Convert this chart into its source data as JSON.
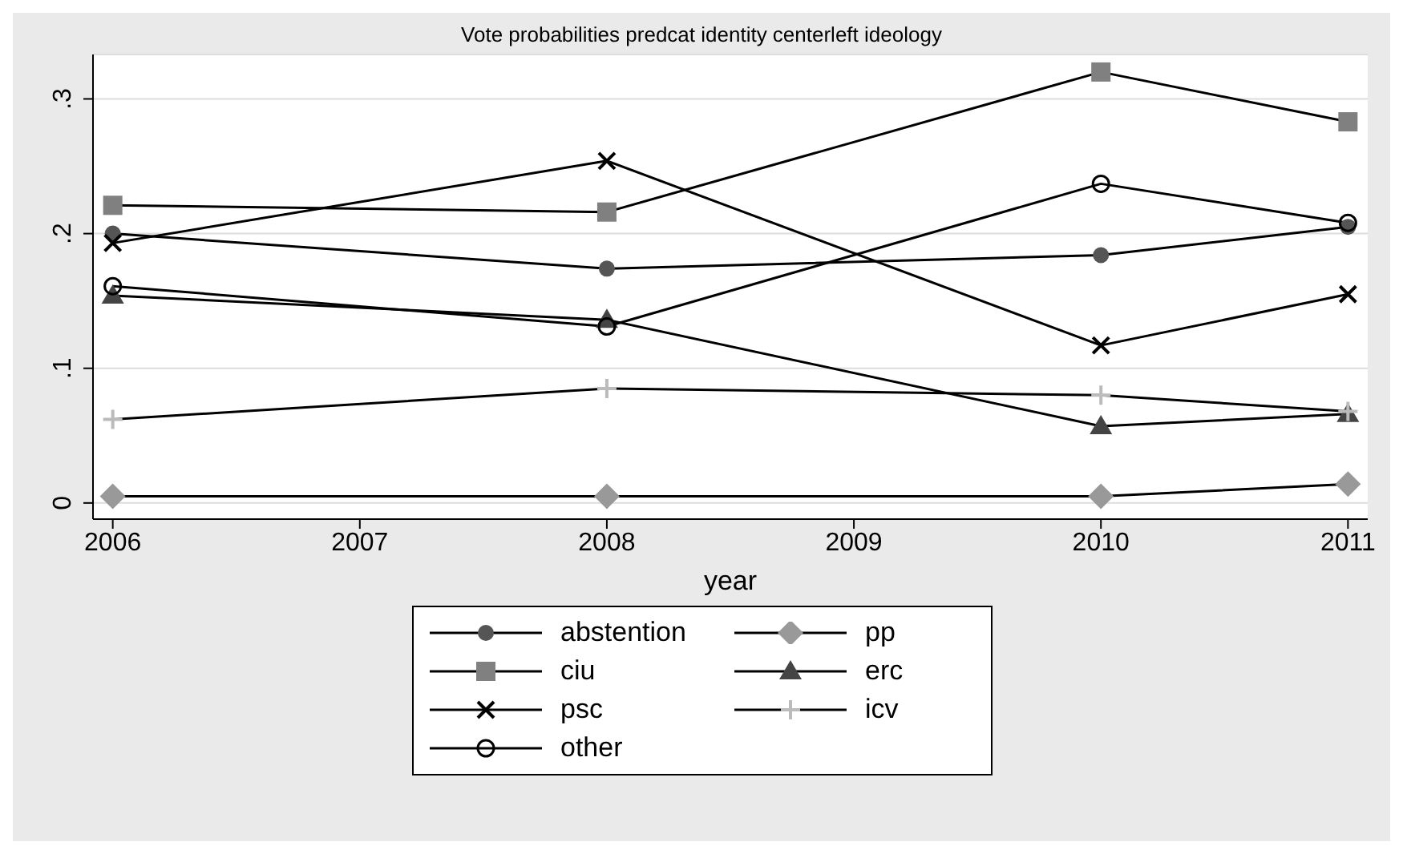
{
  "chart_data": {
    "type": "line",
    "title": "Vote probabilities predcat identity centerleft ideology",
    "xlabel": "year",
    "x": [
      2006,
      2008,
      2010,
      2011
    ],
    "series": [
      {
        "name": "abstention",
        "color": "#555555",
        "marker": "circle",
        "values": [
          0.2,
          0.174,
          0.184,
          0.205
        ]
      },
      {
        "name": "pp",
        "color": "#999999",
        "marker": "diamond",
        "values": [
          0.005,
          0.005,
          0.005,
          0.014
        ]
      },
      {
        "name": "ciu",
        "color": "#808080",
        "marker": "square",
        "values": [
          0.221,
          0.216,
          0.32,
          0.283
        ]
      },
      {
        "name": "erc",
        "color": "#444444",
        "marker": "triangle",
        "values": [
          0.154,
          0.136,
          0.057,
          0.066
        ]
      },
      {
        "name": "psc",
        "color": "#000000",
        "marker": "cross",
        "values": [
          0.193,
          0.254,
          0.117,
          0.155
        ]
      },
      {
        "name": "icv",
        "color": "#bbbbbb",
        "marker": "plus",
        "values": [
          0.062,
          0.085,
          0.08,
          0.068
        ]
      },
      {
        "name": "other",
        "color": "#000000",
        "marker": "open_circle",
        "values": [
          0.161,
          0.131,
          0.237,
          0.208
        ]
      }
    ],
    "xlim": [
      2005.92,
      2011.08
    ],
    "xticks": [
      2006,
      2007,
      2008,
      2009,
      2010,
      2011
    ],
    "ylim": [
      -0.012,
      0.333
    ],
    "yticks": [
      {
        "value": 0,
        "label": "0"
      },
      {
        "value": 0.1,
        "label": ".1"
      },
      {
        "value": 0.2,
        "label": ".2"
      },
      {
        "value": 0.3,
        "label": ".3"
      }
    ],
    "grid": "y",
    "legend": "bottom",
    "line_style": "solid"
  }
}
